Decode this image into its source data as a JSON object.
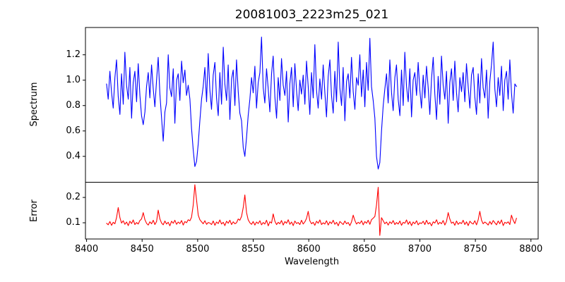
{
  "window": {
    "background": "#ffffff",
    "text_color": "#000000"
  },
  "chart_data": {
    "type": "line",
    "title": "20081003_2223m25_021",
    "xlabel": "Wavelength",
    "grid": false,
    "legend_position": "none",
    "xlim": [
      8399,
      8806.5
    ],
    "xticks": [
      8400,
      8450,
      8500,
      8550,
      8600,
      8650,
      8700,
      8750,
      8800
    ],
    "subplots": [
      {
        "name": "spectrum",
        "ylabel": "Spectrum",
        "ylim": [
          0.196,
          1.415
        ],
        "yticks": [
          0.4,
          0.6,
          0.8,
          1.0,
          1.2
        ],
        "line_color": "#0000ff",
        "x_start": 8418,
        "x_step": 1.5,
        "values": [
          0.97,
          0.85,
          1.07,
          0.9,
          0.78,
          1.02,
          1.16,
          0.87,
          0.73,
          1.05,
          0.81,
          1.22,
          0.96,
          0.85,
          1.1,
          0.7,
          0.98,
          1.07,
          0.83,
          1.13,
          0.88,
          0.72,
          0.65,
          0.75,
          0.95,
          1.06,
          0.86,
          1.12,
          0.93,
          0.79,
          1.0,
          1.18,
          0.89,
          0.7,
          0.52,
          0.75,
          0.82,
          1.2,
          0.94,
          0.87,
          1.09,
          0.66,
          1.0,
          1.05,
          0.84,
          1.15,
          0.98,
          1.08,
          0.88,
          0.96,
          0.85,
          0.62,
          0.45,
          0.32,
          0.36,
          0.5,
          0.68,
          0.85,
          0.95,
          1.1,
          0.83,
          1.21,
          0.92,
          0.77,
          1.04,
          1.14,
          0.86,
          0.72,
          1.06,
          0.81,
          1.26,
          0.97,
          0.84,
          1.12,
          0.69,
          1.01,
          1.08,
          0.8,
          1.16,
          0.91,
          0.74,
          0.68,
          0.47,
          0.4,
          0.55,
          0.72,
          0.85,
          1.02,
          0.9,
          1.11,
          0.78,
          0.98,
          1.06,
          1.34,
          0.94,
          0.82,
          1.09,
          0.93,
          0.75,
          1.05,
          1.19,
          0.87,
          0.7,
          1.02,
          0.84,
          1.17,
          0.96,
          0.88,
          1.07,
          0.67,
          0.97,
          1.1,
          0.79,
          1.13,
          0.92,
          0.76,
          1.0,
          0.89,
          1.04,
          0.81,
          1.15,
          0.95,
          0.73,
          1.06,
          0.86,
          1.28,
          0.92,
          0.78,
          1.01,
          0.85,
          1.12,
          0.9,
          0.71,
          1.03,
          1.16,
          0.88,
          0.74,
          1.07,
          0.83,
          1.3,
          0.94,
          0.8,
          1.1,
          0.68,
          0.99,
          1.05,
          0.86,
          1.18,
          0.91,
          0.77,
          1.02,
          0.96,
          1.2,
          0.87,
          1.08,
          0.79,
          1.14,
          0.92,
          1.33,
          0.95,
          0.84,
          0.7,
          0.4,
          0.3,
          0.35,
          0.6,
          0.8,
          0.93,
          1.05,
          0.82,
          1.16,
          0.9,
          0.76,
          1.02,
          1.12,
          0.85,
          0.72,
          1.08,
          0.8,
          1.22,
          0.95,
          0.83,
          1.09,
          0.71,
          1.0,
          1.06,
          0.88,
          1.14,
          0.92,
          0.78,
          1.04,
          0.86,
          1.11,
          0.94,
          0.73,
          1.01,
          1.18,
          0.89,
          0.69,
          1.03,
          0.81,
          1.19,
          0.96,
          0.85,
          1.07,
          0.66,
          0.98,
          1.09,
          0.84,
          1.15,
          0.9,
          0.75,
          1.02,
          0.91,
          1.06,
          0.83,
          1.13,
          0.95,
          0.78,
          1.04,
          1.1,
          0.87,
          0.73,
          1.05,
          0.82,
          1.17,
          0.94,
          0.86,
          1.08,
          0.7,
          0.99,
          1.12,
          1.3,
          0.93,
          0.79,
          1.02,
          0.88,
          1.11,
          0.76,
          1.0,
          1.07,
          0.85,
          1.16,
          0.9,
          0.74,
          0.97,
          0.95
        ]
      },
      {
        "name": "error",
        "ylabel": "Error",
        "ylim": [
          0.036,
          0.26
        ],
        "yticks": [
          0.1,
          0.2
        ],
        "line_color": "#ff0000",
        "x_start": 8418,
        "x_step": 1.5,
        "values": [
          0.098,
          0.092,
          0.105,
          0.09,
          0.102,
          0.096,
          0.12,
          0.16,
          0.12,
          0.099,
          0.108,
          0.094,
          0.103,
          0.089,
          0.106,
          0.097,
          0.111,
          0.093,
          0.101,
          0.095,
          0.109,
          0.115,
          0.14,
          0.112,
          0.098,
          0.091,
          0.104,
          0.096,
          0.11,
          0.093,
          0.105,
          0.15,
          0.115,
          0.099,
          0.092,
          0.107,
          0.095,
          0.102,
          0.088,
          0.106,
          0.098,
          0.11,
          0.094,
          0.103,
          0.097,
          0.109,
          0.091,
          0.105,
          0.1,
          0.112,
          0.108,
          0.122,
          0.17,
          0.25,
          0.19,
          0.13,
          0.112,
          0.104,
          0.096,
          0.108,
          0.094,
          0.101,
          0.099,
          0.093,
          0.107,
          0.09,
          0.103,
          0.097,
          0.111,
          0.095,
          0.102,
          0.089,
          0.106,
          0.098,
          0.11,
          0.093,
          0.104,
          0.096,
          0.1,
          0.115,
          0.11,
          0.125,
          0.16,
          0.21,
          0.14,
          0.112,
          0.1,
          0.094,
          0.105,
          0.091,
          0.103,
          0.097,
          0.108,
          0.092,
          0.101,
          0.095,
          0.11,
          0.088,
          0.104,
          0.099,
          0.135,
          0.106,
          0.093,
          0.102,
          0.096,
          0.109,
          0.091,
          0.105,
          0.098,
          0.112,
          0.094,
          0.103,
          0.089,
          0.107,
          0.097,
          0.101,
          0.093,
          0.11,
          0.095,
          0.104,
          0.117,
          0.145,
          0.108,
          0.096,
          0.102,
          0.09,
          0.106,
          0.098,
          0.111,
          0.093,
          0.1,
          0.095,
          0.108,
          0.091,
          0.104,
          0.097,
          0.11,
          0.094,
          0.102,
          0.088,
          0.105,
          0.099,
          0.093,
          0.107,
          0.096,
          0.101,
          0.089,
          0.103,
          0.13,
          0.109,
          0.095,
          0.102,
          0.097,
          0.108,
          0.092,
          0.105,
          0.098,
          0.11,
          0.094,
          0.112,
          0.118,
          0.125,
          0.17,
          0.24,
          0.05,
          0.12,
          0.108,
          0.096,
          0.103,
          0.091,
          0.104,
          0.097,
          0.109,
          0.093,
          0.101,
          0.095,
          0.107,
          0.09,
          0.102,
          0.098,
          0.111,
          0.094,
          0.105,
          0.089,
          0.103,
          0.096,
          0.108,
          0.092,
          0.1,
          0.097,
          0.106,
          0.093,
          0.11,
          0.095,
          0.101,
          0.088,
          0.104,
          0.099,
          0.112,
          0.094,
          0.102,
          0.096,
          0.109,
          0.091,
          0.105,
          0.14,
          0.115,
          0.098,
          0.103,
          0.09,
          0.107,
          0.094,
          0.101,
          0.097,
          0.11,
          0.093,
          0.104,
          0.089,
          0.106,
          0.099,
          0.095,
          0.108,
          0.092,
          0.112,
          0.145,
          0.11,
          0.096,
          0.103,
          0.098,
          0.091,
          0.105,
          0.094,
          0.109,
          0.1,
          0.092,
          0.107,
          0.096,
          0.111,
          0.089,
          0.102,
          0.098,
          0.104,
          0.093,
          0.13,
          0.11,
          0.097,
          0.118
        ]
      }
    ]
  }
}
